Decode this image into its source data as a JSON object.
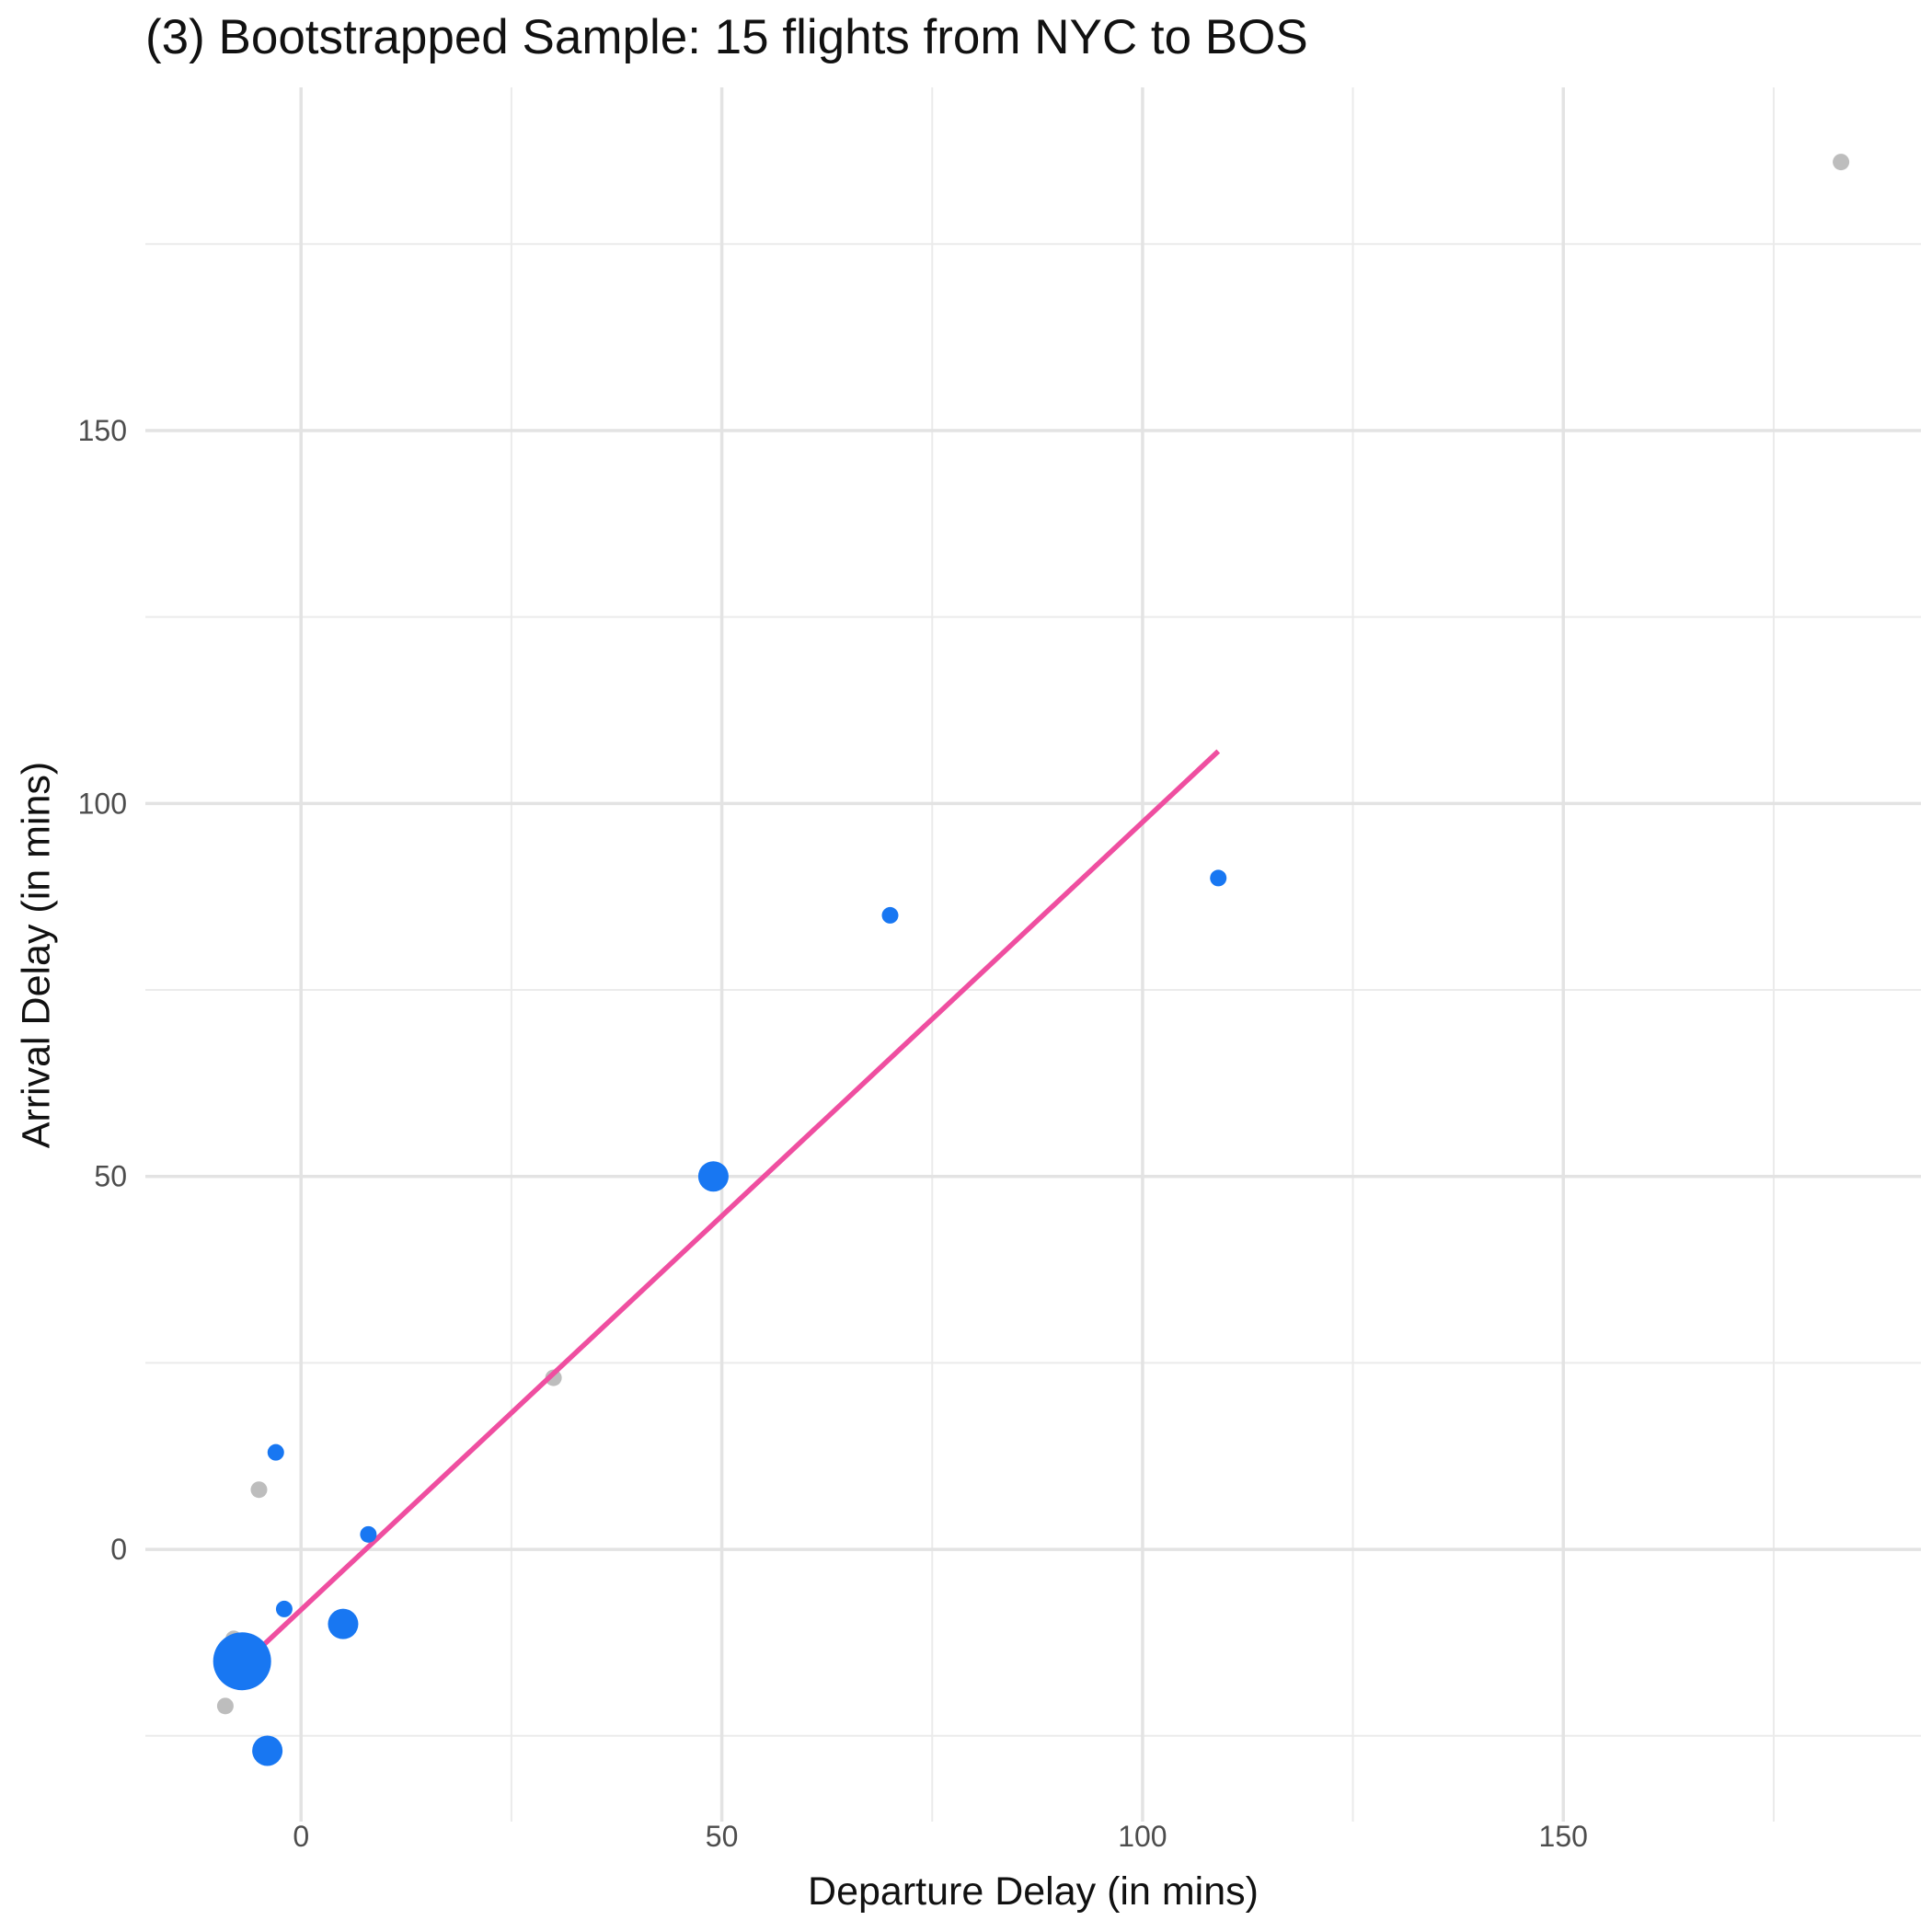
{
  "chart_data": {
    "type": "scatter",
    "title": "(3) Bootstrapped Sample: 15 flights from NYC to BOS",
    "xlabel": "Departure Delay (in mins)",
    "ylabel": "Arrival Delay (in mins)",
    "xlim": [
      -18.5,
      192.5
    ],
    "ylim": [
      -36.5,
      196
    ],
    "x_ticks": [
      0,
      50,
      100,
      150
    ],
    "y_ticks": [
      0,
      50,
      100,
      150
    ],
    "grid": true,
    "legend": "none",
    "colors": {
      "selected": "#1877f2",
      "unselected": "#bdbdbd",
      "fit": "#ef4ea0"
    },
    "points": [
      {
        "x": -7,
        "y": -15,
        "count": 4,
        "selected": true
      },
      {
        "x": -4,
        "y": -27,
        "count": 2,
        "selected": true
      },
      {
        "x": 5,
        "y": -10,
        "count": 2,
        "selected": true
      },
      {
        "x": 49,
        "y": 50,
        "count": 2,
        "selected": true
      },
      {
        "x": -3,
        "y": 13,
        "count": 1,
        "selected": true
      },
      {
        "x": -2,
        "y": -8,
        "count": 1,
        "selected": true
      },
      {
        "x": 8,
        "y": 2,
        "count": 1,
        "selected": true
      },
      {
        "x": 70,
        "y": 85,
        "count": 1,
        "selected": true
      },
      {
        "x": 109,
        "y": 90,
        "count": 1,
        "selected": true
      },
      {
        "x": -5,
        "y": 8,
        "count": 1,
        "selected": false
      },
      {
        "x": -8,
        "y": -12,
        "count": 1,
        "selected": false
      },
      {
        "x": -9,
        "y": -21,
        "count": 1,
        "selected": false
      },
      {
        "x": 30,
        "y": 23,
        "count": 1,
        "selected": false
      },
      {
        "x": 183,
        "y": 186,
        "count": 1,
        "selected": false
      }
    ],
    "fit_line": {
      "x": [
        -7,
        109
      ],
      "y": [
        -15.5,
        107
      ]
    }
  }
}
